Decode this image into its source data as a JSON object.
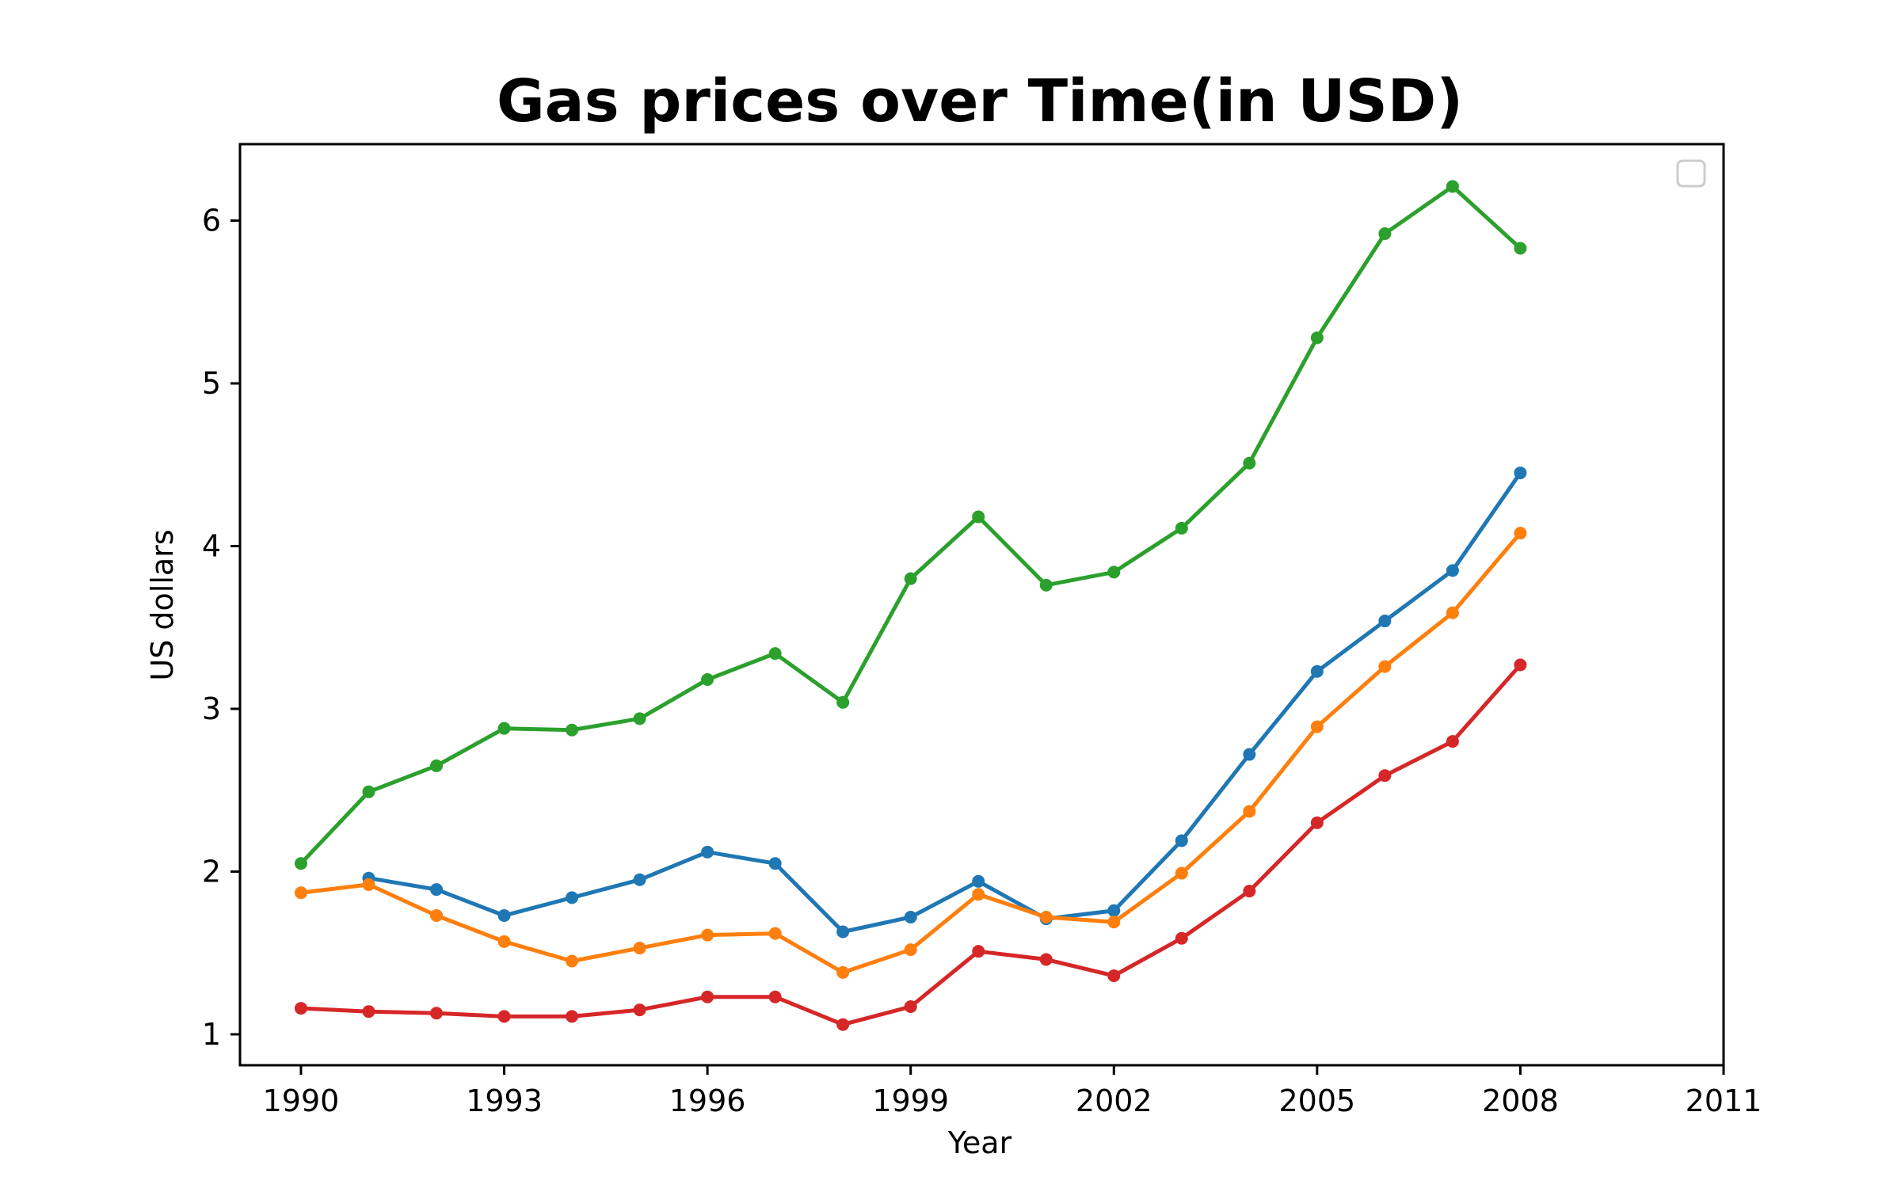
{
  "chart_data": {
    "type": "line",
    "title": "Gas prices over Time(in USD)",
    "xlabel": "Year",
    "ylabel": "US dollars",
    "xlim": [
      1989.1,
      2011
    ],
    "ylim": [
      0.81,
      6.47
    ],
    "xticks": [
      1990,
      1993,
      1996,
      1999,
      2002,
      2005,
      2008,
      2011
    ],
    "yticks": [
      1,
      2,
      3,
      4,
      5,
      6
    ],
    "grid": false,
    "legend": "top-right",
    "legend_entries": [],
    "series": [
      {
        "color": "#1f77b4",
        "x": [
          1991,
          1992,
          1993,
          1994,
          1995,
          1996,
          1997,
          1998,
          1999,
          2000,
          2001,
          2002,
          2003,
          2004,
          2005,
          2006,
          2007,
          2008
        ],
        "values": [
          1.96,
          1.89,
          1.73,
          1.84,
          1.95,
          2.12,
          2.05,
          1.63,
          1.72,
          1.94,
          1.71,
          1.76,
          2.19,
          2.72,
          3.23,
          3.54,
          3.85,
          4.45
        ]
      },
      {
        "color": "#ff7f0e",
        "x": [
          1990,
          1991,
          1992,
          1993,
          1994,
          1995,
          1996,
          1997,
          1998,
          1999,
          2000,
          2001,
          2002,
          2003,
          2004,
          2005,
          2006,
          2007,
          2008
        ],
        "values": [
          1.87,
          1.92,
          1.73,
          1.57,
          1.45,
          1.53,
          1.61,
          1.62,
          1.38,
          1.52,
          1.86,
          1.72,
          1.69,
          1.99,
          2.37,
          2.89,
          3.26,
          3.59,
          4.08
        ]
      },
      {
        "color": "#2ca02c",
        "x": [
          1990,
          1991,
          1992,
          1993,
          1994,
          1995,
          1996,
          1997,
          1998,
          1999,
          2000,
          2001,
          2002,
          2003,
          2004,
          2005,
          2006,
          2007,
          2008
        ],
        "values": [
          2.05,
          2.49,
          2.65,
          2.88,
          2.87,
          2.94,
          3.18,
          3.34,
          3.04,
          3.8,
          4.18,
          3.76,
          3.84,
          4.11,
          4.51,
          5.28,
          5.92,
          6.21,
          5.83
        ]
      },
      {
        "color": "#d62728",
        "x": [
          1990,
          1991,
          1992,
          1993,
          1994,
          1995,
          1996,
          1997,
          1998,
          1999,
          2000,
          2001,
          2002,
          2003,
          2004,
          2005,
          2006,
          2007,
          2008
        ],
        "values": [
          1.16,
          1.14,
          1.13,
          1.11,
          1.11,
          1.15,
          1.23,
          1.23,
          1.06,
          1.17,
          1.51,
          1.46,
          1.36,
          1.59,
          1.88,
          2.3,
          2.59,
          2.8,
          3.27
        ]
      }
    ]
  }
}
